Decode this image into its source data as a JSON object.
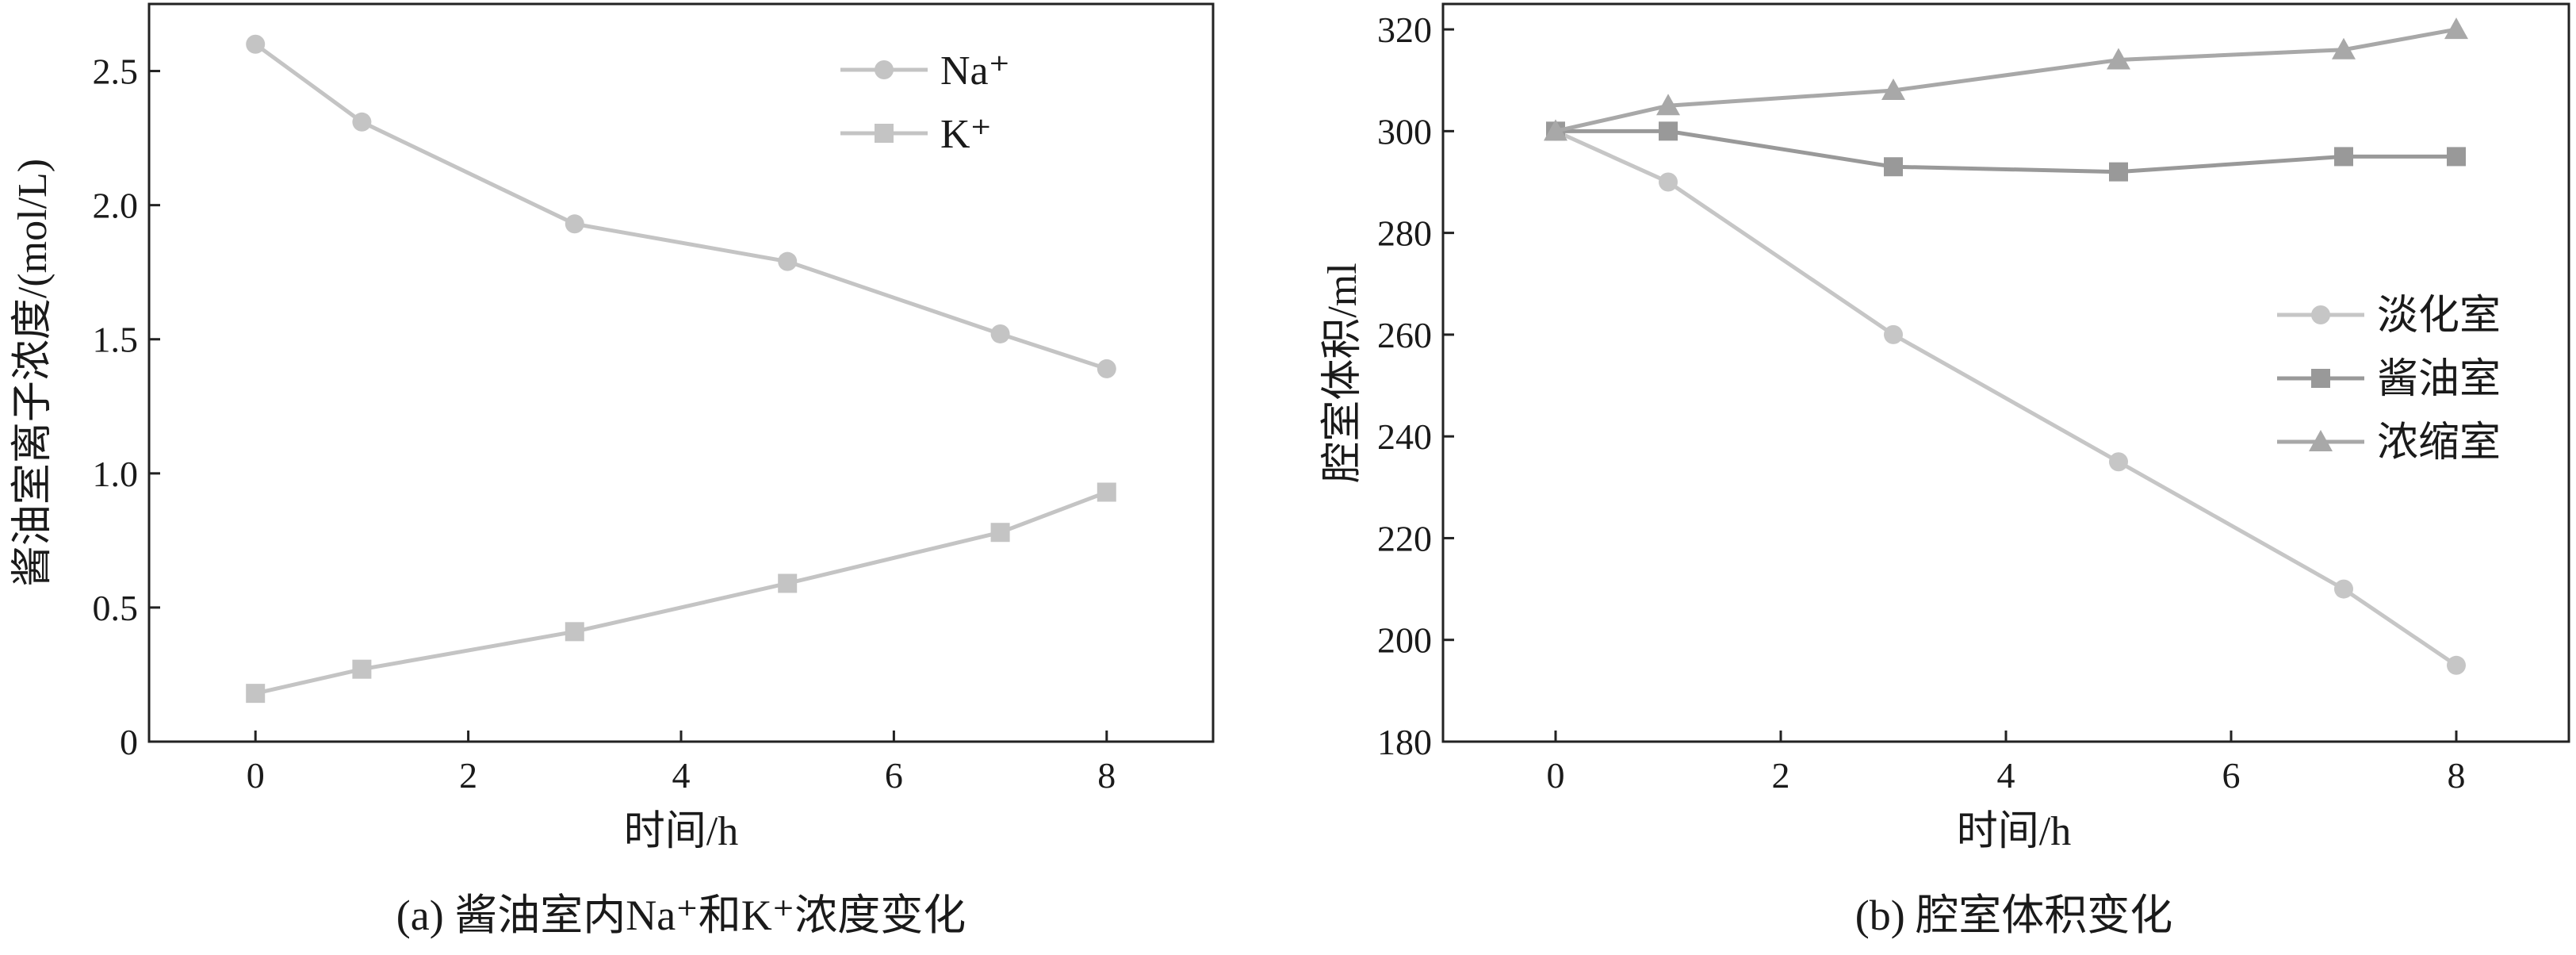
{
  "chart_data": [
    {
      "type": "line",
      "caption": "(a) 酱油室内Na⁺和K⁺浓度变化",
      "xlabel": "时间/h",
      "ylabel": "酱油室离子浓度/(mol/L)",
      "xlim": [
        -1,
        9
      ],
      "ylim": [
        0,
        2.75
      ],
      "xticks": [
        0,
        2,
        4,
        6,
        8
      ],
      "yticks": [
        0,
        0.5,
        1.0,
        1.5,
        2.0,
        2.5
      ],
      "ytick_labels": [
        "0",
        "0.5",
        "1.0",
        "1.5",
        "2.0",
        "2.5"
      ],
      "legend_position": "top-right",
      "series": [
        {
          "name": "Na⁺",
          "marker": "circle",
          "color": "#c4c4c4",
          "x": [
            0,
            1,
            3,
            5,
            7,
            8
          ],
          "y": [
            2.6,
            2.31,
            1.93,
            1.79,
            1.52,
            1.39
          ]
        },
        {
          "name": "K⁺",
          "marker": "square",
          "color": "#c4c4c4",
          "x": [
            0,
            1,
            3,
            5,
            7,
            8
          ],
          "y": [
            0.18,
            0.27,
            0.41,
            0.59,
            0.78,
            0.93
          ]
        }
      ]
    },
    {
      "type": "line",
      "caption": "(b) 腔室体积变化",
      "xlabel": "时间/h",
      "ylabel": "腔室体积/ml",
      "xlim": [
        -1,
        9
      ],
      "ylim": [
        180,
        325
      ],
      "xticks": [
        0,
        2,
        4,
        6,
        8
      ],
      "yticks": [
        180,
        200,
        220,
        240,
        260,
        280,
        300,
        320
      ],
      "ytick_labels": [
        "180",
        "200",
        "220",
        "240",
        "260",
        "280",
        "300",
        "320"
      ],
      "legend_position": "right",
      "series": [
        {
          "name": "淡化室",
          "marker": "circle",
          "color": "#c6c6c6",
          "x": [
            0,
            1,
            3,
            5,
            7,
            8
          ],
          "y": [
            300,
            290,
            260,
            235,
            210,
            195
          ]
        },
        {
          "name": "酱油室",
          "marker": "square",
          "color": "#999999",
          "x": [
            0,
            1,
            3,
            5,
            7,
            8
          ],
          "y": [
            300,
            300,
            293,
            292,
            295,
            295
          ]
        },
        {
          "name": "浓缩室",
          "marker": "triangle",
          "color": "#a8a8a8",
          "x": [
            0,
            1,
            3,
            5,
            7,
            8
          ],
          "y": [
            300,
            305,
            308,
            314,
            316,
            320
          ]
        }
      ]
    }
  ]
}
